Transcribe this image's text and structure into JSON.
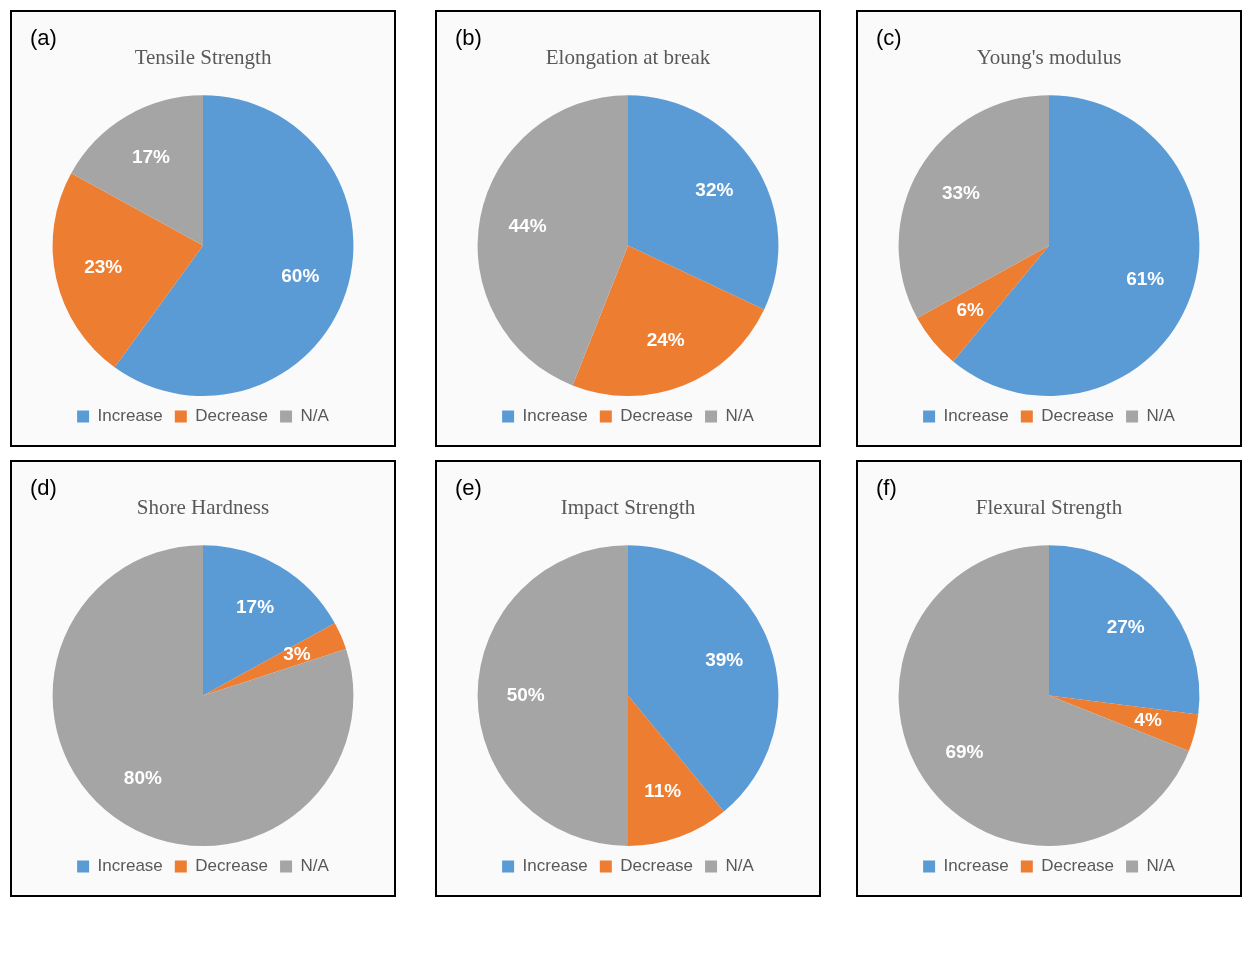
{
  "chart_data": [
    {
      "type": "pie",
      "title": "Tensile Strength",
      "annotations": [
        "(a)"
      ],
      "categories": [
        "Increase",
        "Decrease",
        "N/A"
      ],
      "values": [
        60,
        23,
        17
      ],
      "value_labels": [
        "60%",
        "23%",
        "17%"
      ],
      "colors": [
        "#5b9bd5",
        "#ed7d31",
        "#a5a5a5"
      ],
      "legend": "bottom"
    },
    {
      "type": "pie",
      "title": "Elongation at break",
      "annotations": [
        "(b)"
      ],
      "categories": [
        "Increase",
        "Decrease",
        "N/A"
      ],
      "values": [
        32,
        24,
        44
      ],
      "value_labels": [
        "32%",
        "24%",
        "44%"
      ],
      "colors": [
        "#5b9bd5",
        "#ed7d31",
        "#a5a5a5"
      ],
      "legend": "bottom"
    },
    {
      "type": "pie",
      "title": "Young's modulus",
      "annotations": [
        "(c)"
      ],
      "categories": [
        "Increase",
        "Decrease",
        "N/A"
      ],
      "values": [
        61,
        6,
        33
      ],
      "value_labels": [
        "61%",
        "6%",
        "33%"
      ],
      "colors": [
        "#5b9bd5",
        "#ed7d31",
        "#a5a5a5"
      ],
      "legend": "bottom"
    },
    {
      "type": "pie",
      "title": "Shore Hardness",
      "annotations": [
        "(d)"
      ],
      "categories": [
        "Increase",
        "Decrease",
        "N/A"
      ],
      "values": [
        17,
        3,
        80
      ],
      "value_labels": [
        "17%",
        "3%",
        "80%"
      ],
      "colors": [
        "#5b9bd5",
        "#ed7d31",
        "#a5a5a5"
      ],
      "legend": "bottom"
    },
    {
      "type": "pie",
      "title": "Impact Strength",
      "annotations": [
        "(e)"
      ],
      "categories": [
        "Increase",
        "Decrease",
        "N/A"
      ],
      "values": [
        39,
        11,
        50
      ],
      "value_labels": [
        "39%",
        "11%",
        "50%"
      ],
      "colors": [
        "#5b9bd5",
        "#ed7d31",
        "#a5a5a5"
      ],
      "legend": "bottom"
    },
    {
      "type": "pie",
      "title": "Flexural Strength",
      "annotations": [
        "(f)"
      ],
      "categories": [
        "Increase",
        "Decrease",
        "N/A"
      ],
      "values": [
        27,
        4,
        69
      ],
      "value_labels": [
        "27%",
        "4%",
        "69%"
      ],
      "colors": [
        "#5b9bd5",
        "#ed7d31",
        "#a5a5a5"
      ],
      "legend": "bottom"
    }
  ]
}
